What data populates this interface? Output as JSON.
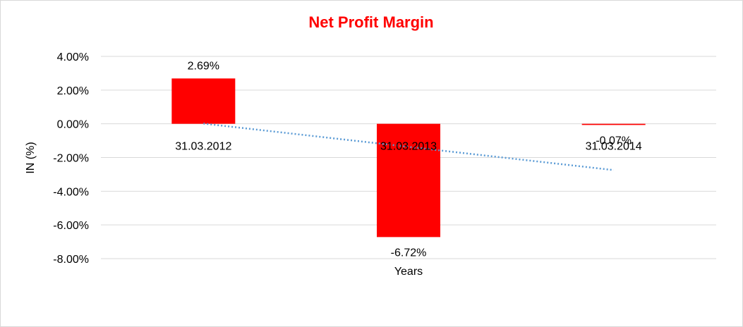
{
  "chart_data": {
    "type": "bar",
    "title": "Net Profit Margin",
    "xlabel": "Years",
    "ylabel": "IN (%)",
    "categories": [
      "31.03.2012",
      "31.03.2013",
      "31.03.2014"
    ],
    "values": [
      2.69,
      -6.72,
      -0.07
    ],
    "data_labels": [
      "2.69%",
      "-6.72%",
      "-0.07%"
    ],
    "ylim": [
      -8,
      4
    ],
    "yticks": [
      4,
      2,
      0,
      -2,
      -4,
      -6,
      -8
    ],
    "ytick_labels": [
      "4.00%",
      "2.00%",
      "0.00%",
      "-2.00%",
      "-4.00%",
      "-6.00%",
      "-8.00%"
    ],
    "grid": true,
    "trendline": "linear",
    "colors": {
      "bar": "#ff0000",
      "title": "#ff0000",
      "trend": "#5b9bd5",
      "grid": "#d9d9d9"
    }
  }
}
